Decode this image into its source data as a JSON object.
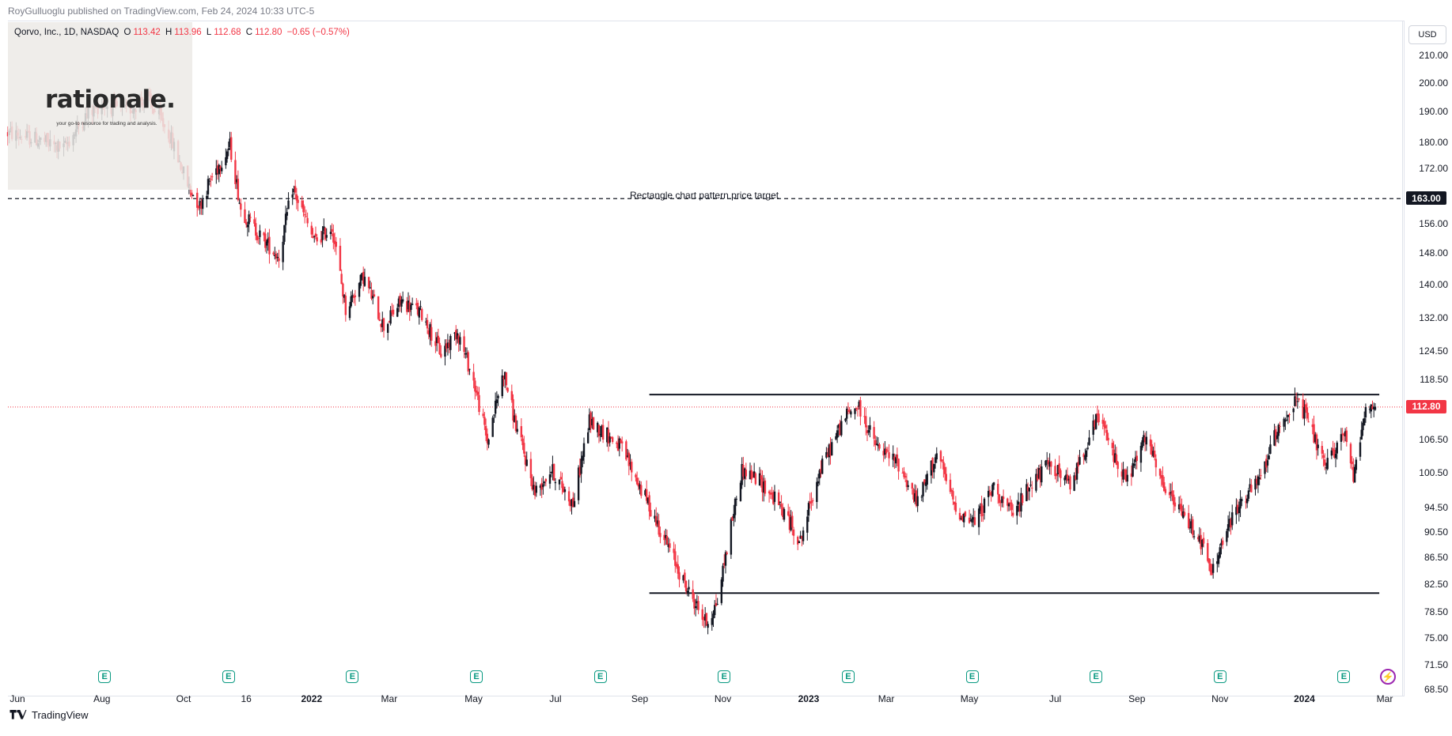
{
  "header": {
    "publisher": "RoyGulluoglu published on TradingView.com, Feb 24, 2024 10:33 UTC-5"
  },
  "legend": {
    "symbol": "Qorvo, Inc., 1D, NASDAQ",
    "o_label": "O",
    "o_value": "113.42",
    "h_label": "H",
    "h_value": "113.96",
    "l_label": "L",
    "l_value": "112.68",
    "c_label": "C",
    "c_value": "112.80",
    "change": "−0.65 (−0.57%)"
  },
  "watermark": {
    "logo": "rationale.",
    "tagline": "your go-to resource for trading and analysis."
  },
  "currency_button": "USD",
  "annotation": "Rectangle chart pattern price target",
  "target_tag": "163.00",
  "last_price_tag": "112.80",
  "footer": {
    "brand": "TradingView"
  },
  "colors": {
    "up": "#131722",
    "down": "#f23645",
    "earnings": "#089981",
    "accent": "#9c27b0"
  },
  "icons": {
    "earnings": "earnings-e-icon",
    "bolt": "lightning-icon",
    "brand": "tradingview-logo-icon"
  },
  "chart_data": {
    "type": "candlestick",
    "symbol": "Qorvo, Inc.",
    "interval": "1D",
    "exchange": "NASDAQ",
    "currency": "USD",
    "y_scale": "log",
    "ylim": [
      68.5,
      222
    ],
    "y_ticks": [
      68.5,
      71.5,
      75.0,
      78.5,
      82.5,
      86.5,
      90.5,
      94.5,
      100.5,
      106.5,
      112.5,
      118.5,
      124.5,
      132.0,
      140.0,
      148.0,
      156.0,
      163.0,
      172.0,
      180.0,
      190.0,
      200.0,
      210.0
    ],
    "y_tick_labels": [
      "68.50",
      "71.50",
      "75.00",
      "78.50",
      "82.50",
      "86.50",
      "90.50",
      "94.50",
      "100.50",
      "106.50",
      "112.50",
      "118.50",
      "124.50",
      "132.00",
      "140.00",
      "148.00",
      "156.00",
      "163.00",
      "172.00",
      "180.00",
      "190.00",
      "200.00",
      "210.00"
    ],
    "x_ticks": [
      {
        "label": "Jun",
        "date": "2021-06-01",
        "bold": false
      },
      {
        "label": "Aug",
        "date": "2021-08-02",
        "bold": false
      },
      {
        "label": "Oct",
        "date": "2021-10-01",
        "bold": false
      },
      {
        "label": "16",
        "date": "2021-11-16",
        "bold": false
      },
      {
        "label": "2022",
        "date": "2022-01-03",
        "bold": true
      },
      {
        "label": "Mar",
        "date": "2022-03-01",
        "bold": false
      },
      {
        "label": "May",
        "date": "2022-05-02",
        "bold": false
      },
      {
        "label": "Jul",
        "date": "2022-07-01",
        "bold": false
      },
      {
        "label": "Sep",
        "date": "2022-09-01",
        "bold": false
      },
      {
        "label": "Nov",
        "date": "2022-11-01",
        "bold": false
      },
      {
        "label": "2023",
        "date": "2023-01-03",
        "bold": true
      },
      {
        "label": "Mar",
        "date": "2023-03-01",
        "bold": false
      },
      {
        "label": "May",
        "date": "2023-05-01",
        "bold": false
      },
      {
        "label": "Jul",
        "date": "2023-07-03",
        "bold": false
      },
      {
        "label": "Sep",
        "date": "2023-09-01",
        "bold": false
      },
      {
        "label": "Nov",
        "date": "2023-11-01",
        "bold": false
      },
      {
        "label": "2024",
        "date": "2024-01-02",
        "bold": true
      },
      {
        "label": "Mar",
        "date": "2024-03-01",
        "bold": false
      }
    ],
    "price_path": [
      [
        "2021-05-25",
        183
      ],
      [
        "2021-06-15",
        181
      ],
      [
        "2021-07-05",
        178
      ],
      [
        "2021-07-20",
        188
      ],
      [
        "2021-08-02",
        193
      ],
      [
        "2021-08-20",
        190
      ],
      [
        "2021-09-03",
        195
      ],
      [
        "2021-09-20",
        183
      ],
      [
        "2021-10-04",
        167
      ],
      [
        "2021-10-13",
        161
      ],
      [
        "2021-10-20",
        168
      ],
      [
        "2021-11-04",
        179
      ],
      [
        "2021-11-12",
        160
      ],
      [
        "2021-11-25",
        153
      ],
      [
        "2021-12-10",
        147
      ],
      [
        "2021-12-20",
        166
      ],
      [
        "2022-01-05",
        151
      ],
      [
        "2022-01-18",
        155
      ],
      [
        "2022-01-28",
        134
      ],
      [
        "2022-02-10",
        142
      ],
      [
        "2022-02-25",
        130
      ],
      [
        "2022-03-10",
        136
      ],
      [
        "2022-03-25",
        133
      ],
      [
        "2022-04-08",
        124
      ],
      [
        "2022-04-20",
        129
      ],
      [
        "2022-05-02",
        118
      ],
      [
        "2022-05-12",
        106
      ],
      [
        "2022-05-24",
        120
      ],
      [
        "2022-06-02",
        109
      ],
      [
        "2022-06-16",
        97
      ],
      [
        "2022-06-28",
        101
      ],
      [
        "2022-07-14",
        95
      ],
      [
        "2022-07-26",
        110
      ],
      [
        "2022-08-10",
        107
      ],
      [
        "2022-08-18",
        105
      ],
      [
        "2022-09-01",
        98
      ],
      [
        "2022-09-22",
        88
      ],
      [
        "2022-10-05",
        82
      ],
      [
        "2022-10-20",
        77
      ],
      [
        "2022-10-28",
        80
      ],
      [
        "2022-11-04",
        88
      ],
      [
        "2022-11-15",
        101
      ],
      [
        "2022-11-28",
        99
      ],
      [
        "2022-12-12",
        95
      ],
      [
        "2022-12-28",
        89
      ],
      [
        "2023-01-10",
        100
      ],
      [
        "2023-01-30",
        111
      ],
      [
        "2023-02-08",
        113
      ],
      [
        "2023-02-22",
        105
      ],
      [
        "2023-03-10",
        102
      ],
      [
        "2023-03-24",
        95
      ],
      [
        "2023-04-07",
        104
      ],
      [
        "2023-04-21",
        94
      ],
      [
        "2023-05-05",
        92
      ],
      [
        "2023-05-19",
        98
      ],
      [
        "2023-06-02",
        93
      ],
      [
        "2023-06-16",
        99
      ],
      [
        "2023-06-30",
        102
      ],
      [
        "2023-07-14",
        98
      ],
      [
        "2023-07-28",
        107
      ],
      [
        "2023-08-04",
        111
      ],
      [
        "2023-08-14",
        104
      ],
      [
        "2023-08-25",
        99
      ],
      [
        "2023-09-08",
        107
      ],
      [
        "2023-09-18",
        99
      ],
      [
        "2023-10-02",
        94
      ],
      [
        "2023-10-16",
        90
      ],
      [
        "2023-10-26",
        84
      ],
      [
        "2023-11-03",
        89
      ],
      [
        "2023-11-15",
        95
      ],
      [
        "2023-11-30",
        99
      ],
      [
        "2023-12-14",
        109
      ],
      [
        "2023-12-27",
        114
      ],
      [
        "2024-01-05",
        110
      ],
      [
        "2024-01-17",
        101
      ],
      [
        "2024-01-31",
        108
      ],
      [
        "2024-02-07",
        100
      ],
      [
        "2024-02-15",
        112
      ],
      [
        "2024-02-23",
        112.8
      ]
    ],
    "annotations": [
      {
        "type": "horizontal_line",
        "label": "Rectangle chart pattern price target",
        "price": 163.0,
        "from": "2021-05-25",
        "to": "2024-03-01",
        "style": "dashed"
      },
      {
        "type": "horizontal_line",
        "price": 115.3,
        "from": "2022-09-08",
        "to": "2024-02-26",
        "style": "solid"
      },
      {
        "type": "horizontal_line",
        "price": 81.2,
        "from": "2022-09-08",
        "to": "2024-02-26",
        "style": "solid"
      }
    ],
    "last_price": 112.8,
    "earnings_dates": [
      "2021-08-04",
      "2021-11-03",
      "2022-02-02",
      "2022-05-04",
      "2022-08-03",
      "2022-11-02",
      "2023-02-01",
      "2023-05-03",
      "2023-08-02",
      "2023-11-01",
      "2024-01-31"
    ],
    "grid": false,
    "legend_placement": "top-left"
  }
}
